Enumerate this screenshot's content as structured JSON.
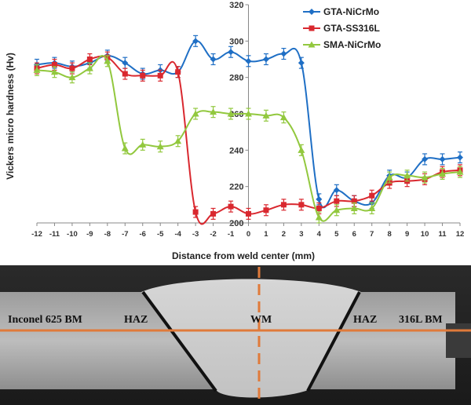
{
  "chart_data": {
    "type": "line",
    "xlabel": "Distance from weld center (mm)",
    "ylabel": "Vickers micro hardness (Hv)",
    "xlim": [
      -12,
      12
    ],
    "ylim": [
      200,
      320
    ],
    "yticks": [
      200,
      220,
      240,
      260,
      280,
      300,
      320
    ],
    "x": [
      -12,
      -11,
      -10,
      -9,
      -8,
      -7,
      -6,
      -5,
      -4,
      -3,
      -2,
      -1,
      0,
      1,
      2,
      3,
      4,
      5,
      6,
      7,
      8,
      9,
      10,
      11,
      12
    ],
    "legend_position": "top-right",
    "grid": false,
    "series": [
      {
        "name": "GTA-NiCrMo",
        "color": "#1f6fc5",
        "marker": "diamond",
        "values": [
          287,
          288,
          286,
          288,
          292,
          288,
          282,
          284,
          283,
          300,
          290,
          294,
          289,
          290,
          293,
          288,
          213,
          218,
          212,
          211,
          226,
          225,
          235,
          235,
          236
        ],
        "error": [
          3,
          3,
          3,
          3,
          3,
          3,
          3,
          3,
          3,
          3,
          3,
          3,
          3,
          3,
          3,
          3,
          3,
          3,
          3,
          3,
          3,
          3,
          3,
          3,
          3
        ]
      },
      {
        "name": "GTA-SS316L",
        "color": "#d9282f",
        "marker": "square",
        "values": [
          285,
          287,
          285,
          290,
          291,
          282,
          281,
          281,
          283,
          206,
          205,
          209,
          205,
          207,
          210,
          210,
          208,
          212,
          212,
          215,
          222,
          223,
          224,
          228,
          229
        ],
        "error": [
          3,
          3,
          3,
          3,
          3,
          3,
          3,
          3,
          3,
          3,
          3,
          3,
          3,
          3,
          3,
          3,
          3,
          3,
          3,
          3,
          3,
          3,
          3,
          3,
          3
        ]
      },
      {
        "name": "SMA-NiCrMo",
        "color": "#92c83e",
        "marker": "triangle",
        "values": [
          284,
          283,
          280,
          285,
          289,
          241,
          243,
          242,
          245,
          260,
          261,
          260,
          260,
          259,
          258,
          240,
          203,
          207,
          208,
          208,
          225,
          226,
          225,
          227,
          228
        ],
        "error": [
          3,
          3,
          3,
          3,
          3,
          3,
          3,
          3,
          3,
          3,
          3,
          3,
          3,
          3,
          3,
          3,
          3,
          3,
          3,
          3,
          3,
          3,
          3,
          3,
          3
        ]
      }
    ]
  },
  "micrograph": {
    "labels": {
      "left_bm": "Inconel 625 BM",
      "haz_left": "HAZ",
      "wm": "WM",
      "haz_right": "HAZ",
      "right_bm": "316L BM"
    },
    "colors": {
      "axis_lines": "#e07a3a",
      "fusion_lines": "#111111"
    }
  }
}
